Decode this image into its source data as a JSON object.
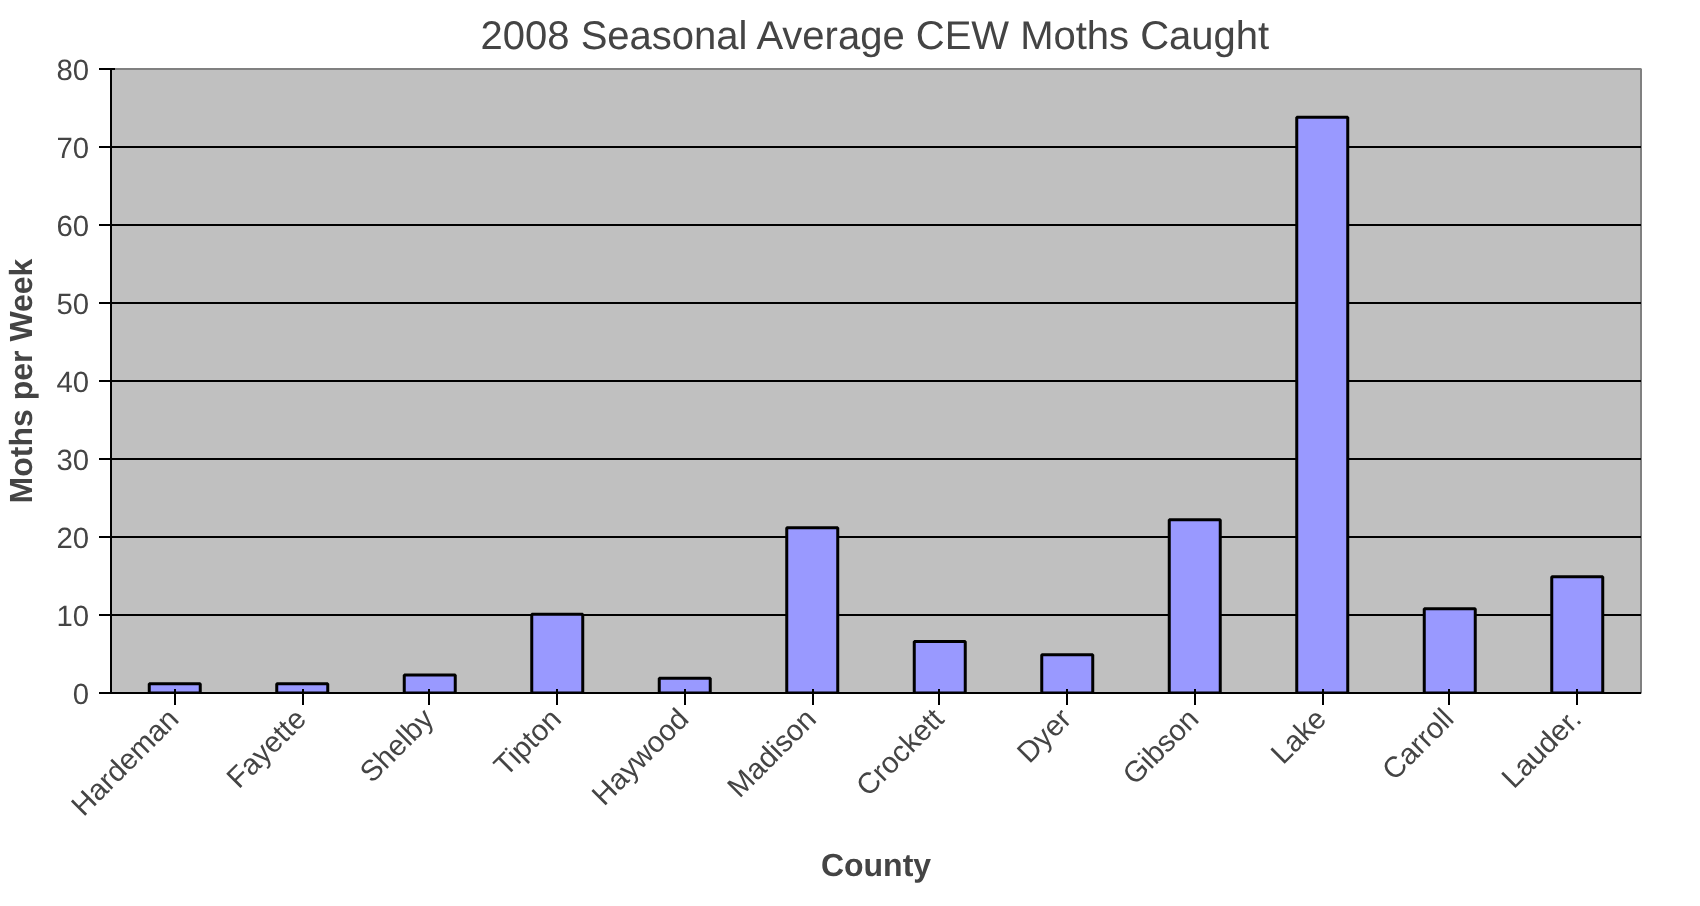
{
  "chart_data": {
    "type": "bar",
    "title": "2008 Seasonal Average CEW Moths Caught",
    "xlabel": "County",
    "ylabel": "Moths per Week",
    "categories": [
      "Hardeman",
      "Fayette",
      "Shelby",
      "Tipton",
      "Haywood",
      "Madison",
      "Crockett",
      "Dyer",
      "Gibson",
      "Lake",
      "Carroll",
      "Lauder."
    ],
    "values": [
      1.2,
      1.2,
      2.3,
      10.1,
      1.9,
      21.2,
      6.6,
      4.9,
      22.2,
      73.8,
      10.8,
      14.9
    ],
    "color": "#9999ff",
    "ylim": [
      0,
      80
    ],
    "yticks": [
      0,
      10,
      20,
      30,
      40,
      50,
      60,
      70,
      80
    ],
    "grid": "y"
  }
}
